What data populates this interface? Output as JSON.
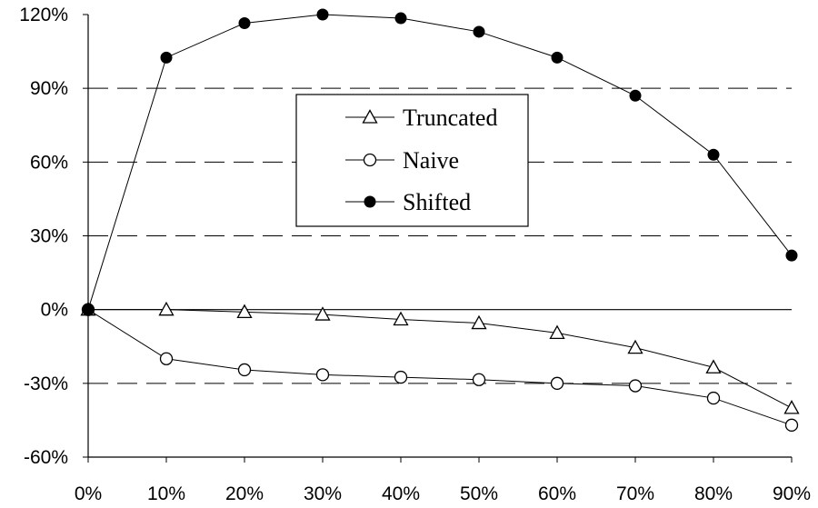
{
  "chart_data": {
    "type": "line",
    "title": "",
    "xlabel": "",
    "ylabel": "",
    "x": [
      0,
      10,
      20,
      30,
      40,
      50,
      60,
      70,
      80,
      90
    ],
    "x_tick_labels": [
      "0%",
      "10%",
      "20%",
      "30%",
      "40%",
      "50%",
      "60%",
      "70%",
      "80%",
      "90%"
    ],
    "xlim": [
      0,
      90
    ],
    "ylim": [
      -60,
      120
    ],
    "y_ticks": [
      -60,
      -30,
      0,
      30,
      60,
      90,
      120
    ],
    "y_tick_labels": [
      "-60%",
      "-30%",
      "0%",
      "30%",
      "60%",
      "90%",
      "120%"
    ],
    "grid": "horizontal dashed",
    "legend_position": "center",
    "series": [
      {
        "name": "Truncated",
        "marker": "triangle-open",
        "values": [
          0,
          0,
          -1,
          -2,
          -4,
          -5.5,
          -9.5,
          -15.5,
          -23.5,
          -40
        ]
      },
      {
        "name": "Naive",
        "marker": "circle-open",
        "values": [
          0,
          -20,
          -24.5,
          -26.5,
          -27.5,
          -28.5,
          -30,
          -31,
          -36,
          -47
        ]
      },
      {
        "name": "Shifted",
        "marker": "circle-filled",
        "values": [
          0,
          102.5,
          116.5,
          120,
          118.5,
          113,
          102.5,
          87,
          63,
          22
        ]
      }
    ],
    "colors": {
      "line": "#000000",
      "background": "#ffffff"
    }
  }
}
